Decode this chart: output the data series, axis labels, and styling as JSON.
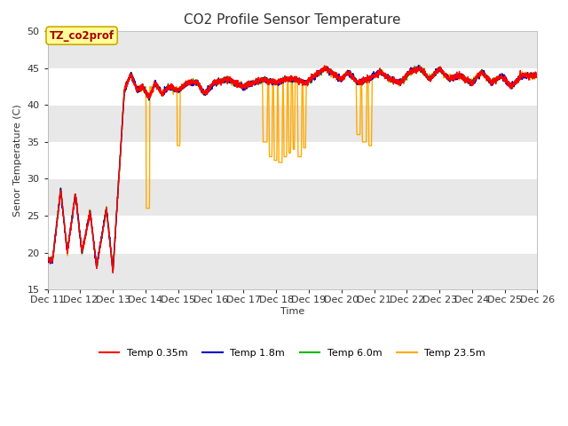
{
  "title": "CO2 Profile Sensor Temperature",
  "ylabel": "Senor Temperature (C)",
  "xlabel": "Time",
  "xlim_days": [
    11,
    26
  ],
  "ylim": [
    15,
    50
  ],
  "yticks": [
    15,
    20,
    25,
    30,
    35,
    40,
    45,
    50
  ],
  "annotation_text": "TZ_co2prof",
  "annotation_bg": "#ffff99",
  "annotation_border": "#ccaa00",
  "fig_bg": "#ffffff",
  "plot_bg": "#ffffff",
  "band_colors": [
    "#e8e8e8",
    "#f5f5f5"
  ],
  "colors": {
    "035m": "#ff0000",
    "18m": "#0000cc",
    "60m": "#00bb00",
    "235m": "#ffaa00"
  },
  "legend_labels": [
    "Temp 0.35m",
    "Temp 1.8m",
    "Temp 6.0m",
    "Temp 23.5m"
  ],
  "legend_colors": [
    "#ff0000",
    "#0000cc",
    "#00bb00",
    "#ffaa00"
  ],
  "linewidth": 1.0,
  "title_fontsize": 11,
  "label_fontsize": 8,
  "tick_fontsize": 8,
  "legend_fontsize": 8
}
